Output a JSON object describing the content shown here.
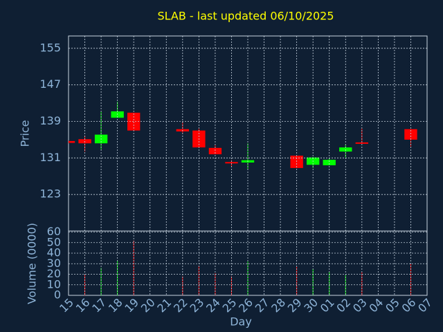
{
  "chart_data": {
    "type": "candlestick",
    "title": "SLAB - last updated 06/10/2025",
    "ylabel": "Price",
    "xlabel": "Day",
    "categories": [
      "15",
      "16",
      "17",
      "18",
      "19",
      "20",
      "21",
      "22",
      "23",
      "24",
      "25",
      "26",
      "27",
      "28",
      "29",
      "30",
      "01",
      "02",
      "03",
      "04",
      "05",
      "06",
      "07"
    ],
    "open": [
      134.7,
      135.1,
      134.2,
      139.8,
      140.9,
      null,
      null,
      137.3,
      137.0,
      133.2,
      130.1,
      130.0,
      null,
      null,
      131.5,
      129.5,
      129.4,
      132.4,
      134.4,
      null,
      null,
      137.3,
      null
    ],
    "high": [
      134.8,
      135.9,
      141.1,
      143.3,
      140.9,
      null,
      null,
      138.9,
      137.4,
      133.8,
      130.5,
      134.2,
      null,
      null,
      131.5,
      131.2,
      130.9,
      133.9,
      137.4,
      null,
      null,
      137.3,
      null
    ],
    "low": [
      134.2,
      132.4,
      132.9,
      139.8,
      137.0,
      null,
      null,
      136.4,
      133.3,
      131.8,
      129.1,
      128.5,
      null,
      null,
      128.8,
      128.8,
      129.4,
      131.1,
      134.1,
      null,
      null,
      133.5,
      null
    ],
    "close": [
      134.3,
      134.2,
      136.1,
      141.2,
      137.0,
      null,
      null,
      136.8,
      133.3,
      131.8,
      129.9,
      130.5,
      null,
      null,
      128.8,
      131.1,
      130.6,
      133.3,
      134.1,
      null,
      null,
      135.0,
      null
    ],
    "up_color": "#00ff00",
    "down_color": "#ff0000",
    "grid": true,
    "ylim": [
      115,
      157.7
    ],
    "yticks": [
      123,
      131,
      139,
      147,
      155
    ],
    "volume": {
      "label": "Volume (0000)",
      "values": [
        null,
        20,
        26,
        33,
        52,
        null,
        null,
        18,
        28,
        21,
        18,
        32,
        null,
        null,
        27,
        25,
        22,
        19,
        22,
        null,
        null,
        30,
        null
      ],
      "ylim": [
        0,
        61
      ],
      "yticks": [
        0,
        10,
        20,
        30,
        40,
        50,
        60
      ]
    }
  }
}
